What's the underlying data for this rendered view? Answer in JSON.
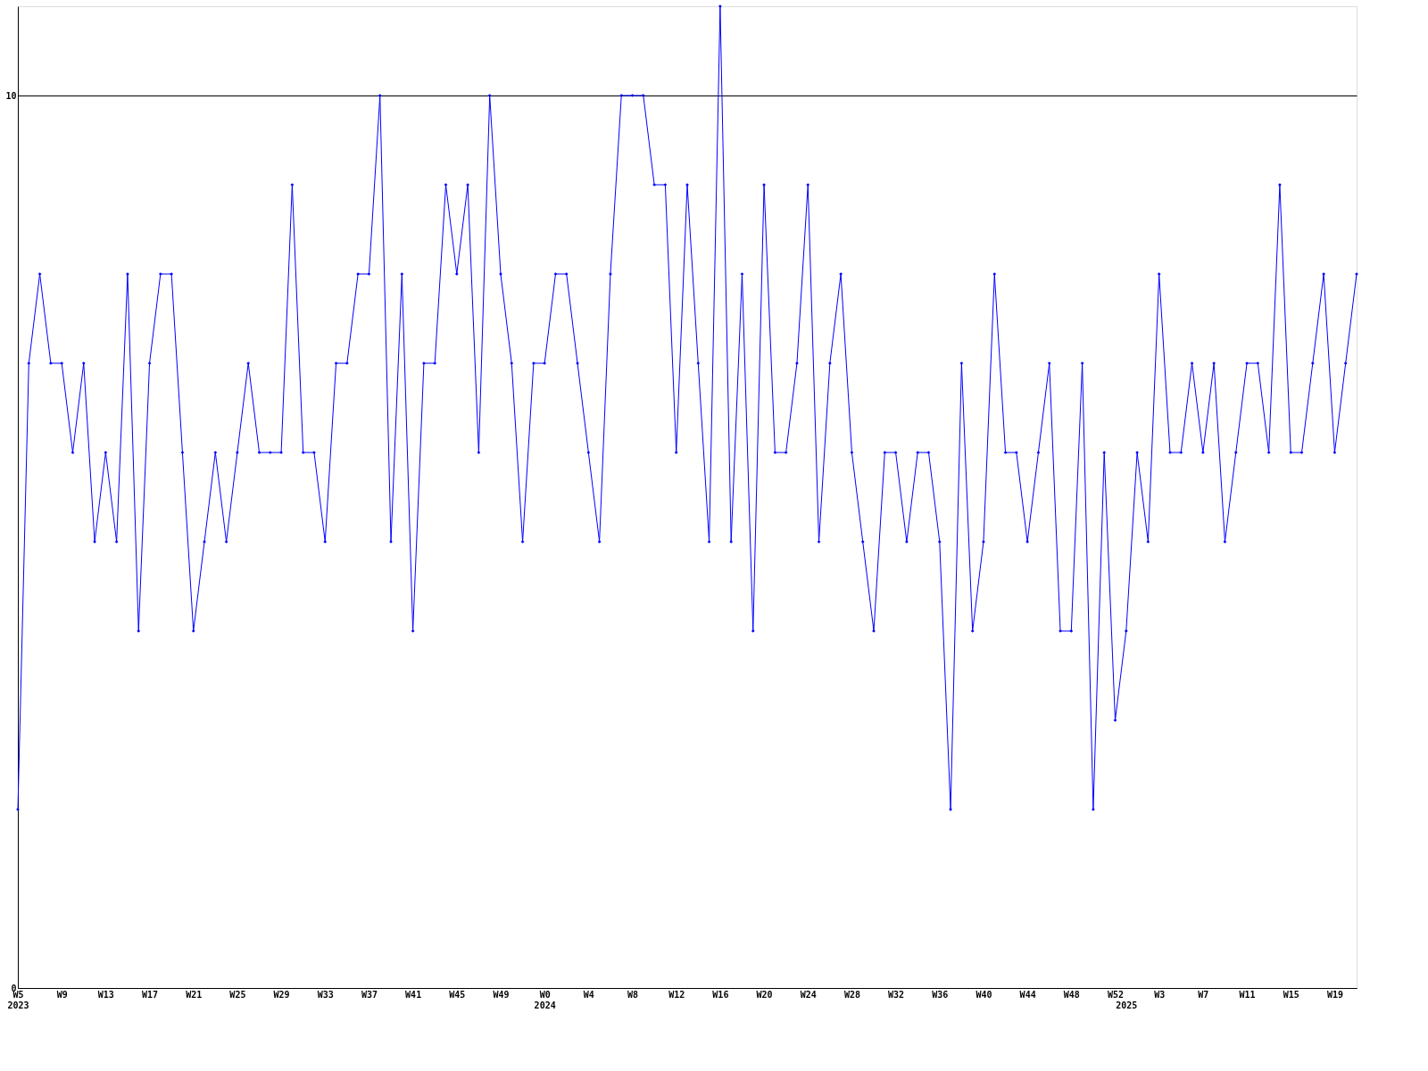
{
  "chart_data": {
    "type": "line",
    "categories": [
      "W5\n2023",
      null,
      null,
      null,
      "W9",
      null,
      null,
      null,
      "W13",
      null,
      null,
      null,
      "W17",
      null,
      null,
      null,
      "W21",
      null,
      null,
      null,
      "W25",
      null,
      null,
      null,
      "W29",
      null,
      null,
      null,
      "W33",
      null,
      null,
      null,
      "W37",
      null,
      null,
      null,
      "W41",
      null,
      null,
      null,
      "W45",
      null,
      null,
      null,
      "W49",
      null,
      null,
      null,
      "W0\n2024",
      null,
      null,
      null,
      "W4",
      null,
      null,
      null,
      "W8",
      null,
      null,
      null,
      "W12",
      null,
      null,
      null,
      "W16",
      null,
      null,
      null,
      "W20",
      null,
      null,
      null,
      "W24",
      null,
      null,
      null,
      "W28",
      null,
      null,
      null,
      "W32",
      null,
      null,
      null,
      "W36",
      null,
      null,
      null,
      "W40",
      null,
      null,
      null,
      "W44",
      null,
      null,
      null,
      "W48",
      null,
      null,
      null,
      "W52",
      "\n2025",
      null,
      null,
      "W3",
      null,
      null,
      null,
      "W7",
      null,
      null,
      null,
      "W11",
      null,
      null,
      null,
      "W15",
      null,
      null,
      null,
      "W19",
      null,
      null
    ],
    "series": [
      {
        "color": "#0000ff",
        "values": [
          2,
          7,
          8,
          7,
          7,
          6,
          7,
          5,
          6,
          5,
          8,
          4,
          7,
          8,
          8,
          6,
          4,
          5,
          6,
          5,
          6,
          7,
          6,
          6,
          6,
          9,
          6,
          6,
          5,
          7,
          7,
          8,
          8,
          10,
          5,
          8,
          4,
          7,
          7,
          9,
          8,
          9,
          6,
          10,
          8,
          7,
          5,
          7,
          7,
          8,
          8,
          7,
          6,
          5,
          8,
          10,
          10,
          10,
          9,
          9,
          6,
          9,
          7,
          5,
          11,
          5,
          8,
          4,
          9,
          6,
          6,
          7,
          9,
          5,
          7,
          8,
          6,
          5,
          4,
          6,
          6,
          5,
          6,
          6,
          5,
          2,
          7,
          4,
          5,
          8,
          6,
          6,
          5,
          6,
          7,
          4,
          4,
          7,
          2,
          6,
          3,
          4,
          6,
          5,
          8,
          6,
          6,
          7,
          6,
          7,
          5,
          6,
          7,
          7,
          6,
          9,
          6,
          6,
          7,
          8,
          6,
          7,
          8
        ]
      }
    ],
    "ylim": [
      0,
      11
    ],
    "yticks": [
      0,
      10
    ],
    "grid": "y",
    "marker": "diamond",
    "line_style": "solid"
  }
}
